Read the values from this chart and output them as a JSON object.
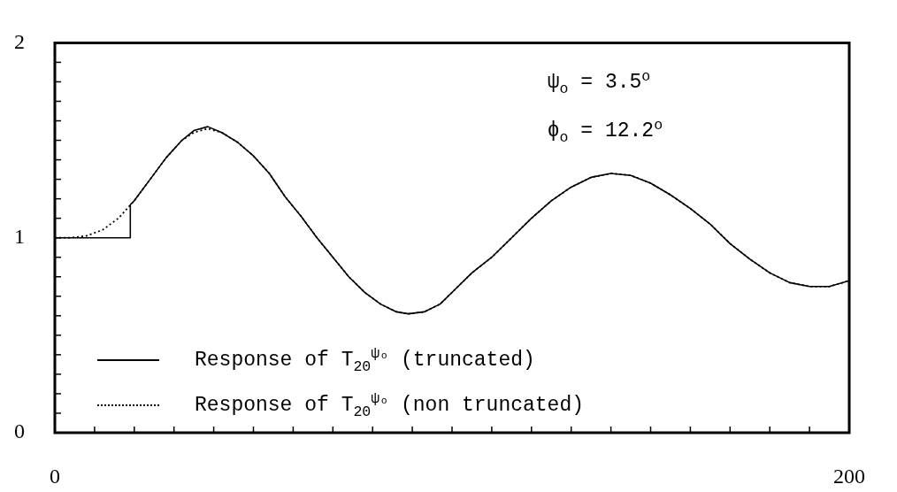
{
  "chart_data": {
    "type": "line",
    "series": [
      {
        "name": "Response of T$_{20}$$^{ψₒ}$ (truncated)",
        "color": "#000000",
        "line_style": "solid",
        "x": [
          0,
          19,
          19,
          20,
          24,
          28,
          32,
          35,
          38.5,
          42,
          46,
          50,
          54,
          58,
          62,
          66,
          70,
          74,
          78,
          82,
          86,
          89,
          93,
          97,
          101,
          105,
          110,
          115,
          120,
          125,
          130,
          135,
          140,
          145,
          150,
          155,
          160,
          165,
          170,
          175,
          180,
          185,
          190,
          195,
          200
        ],
        "values": [
          1.0,
          1.0,
          1.17,
          1.19,
          1.3,
          1.41,
          1.5,
          1.55,
          1.57,
          1.54,
          1.49,
          1.42,
          1.33,
          1.21,
          1.11,
          1.0,
          0.9,
          0.8,
          0.72,
          0.66,
          0.62,
          0.61,
          0.62,
          0.66,
          0.74,
          0.82,
          0.9,
          1.0,
          1.1,
          1.19,
          1.26,
          1.31,
          1.33,
          1.32,
          1.28,
          1.22,
          1.15,
          1.07,
          0.97,
          0.89,
          0.82,
          0.77,
          0.75,
          0.75,
          0.78
        ]
      },
      {
        "name": "Response of T$_{20}$$^{ψₒ}$ (non truncated)",
        "color": "#000000",
        "line_style": "dotted",
        "x": [
          0,
          4,
          8,
          12,
          16,
          20,
          24,
          28,
          32,
          35,
          38.5,
          42,
          46,
          50,
          54,
          58,
          62,
          66,
          70,
          74,
          78,
          82,
          86,
          89,
          93,
          97,
          101,
          105,
          110,
          115,
          120,
          125,
          130,
          135,
          140,
          145,
          150,
          155,
          160,
          165,
          170,
          175,
          180,
          185,
          190,
          195,
          200
        ],
        "values": [
          1.0,
          1.0,
          1.01,
          1.04,
          1.1,
          1.19,
          1.3,
          1.41,
          1.5,
          1.54,
          1.56,
          1.54,
          1.49,
          1.42,
          1.33,
          1.21,
          1.11,
          1.0,
          0.9,
          0.8,
          0.72,
          0.66,
          0.62,
          0.61,
          0.62,
          0.66,
          0.74,
          0.82,
          0.9,
          1.0,
          1.1,
          1.19,
          1.26,
          1.31,
          1.33,
          1.32,
          1.28,
          1.22,
          1.15,
          1.07,
          0.97,
          0.89,
          0.82,
          0.77,
          0.75,
          0.75,
          0.78
        ]
      }
    ],
    "xlim": [
      0,
      200
    ],
    "xticks": [
      0,
      {
        "value": 10,
        "label": null
      },
      {
        "value": 20,
        "label": null
      },
      {
        "value": 30,
        "label": null
      },
      {
        "value": 40,
        "label": null
      },
      {
        "value": 50,
        "label": null
      },
      {
        "value": 60,
        "label": null
      },
      {
        "value": 70,
        "label": null
      },
      {
        "value": 80,
        "label": null
      },
      {
        "value": 90,
        "label": null
      },
      {
        "value": 100,
        "label": null
      },
      {
        "value": 110,
        "label": null
      },
      {
        "value": 120,
        "label": null
      },
      {
        "value": 130,
        "label": null
      },
      {
        "value": 140,
        "label": null
      },
      {
        "value": 150,
        "label": null
      },
      {
        "value": 160,
        "label": null
      },
      {
        "value": 170,
        "label": null
      },
      {
        "value": 180,
        "label": null
      },
      {
        "value": 190,
        "label": null
      },
      200
    ],
    "ylim": [
      0,
      2
    ],
    "yticks": [
      0,
      {
        "value": 0.1,
        "label": null
      },
      {
        "value": 0.2,
        "label": null
      },
      {
        "value": 0.3,
        "label": null
      },
      {
        "value": 0.4,
        "label": null
      },
      {
        "value": 0.5,
        "label": null
      },
      {
        "value": 0.6,
        "label": null
      },
      {
        "value": 0.7,
        "label": null
      },
      {
        "value": 0.8,
        "label": null
      },
      {
        "value": 0.9,
        "label": null
      },
      1,
      {
        "value": 1.1,
        "label": null
      },
      {
        "value": 1.2,
        "label": null
      },
      {
        "value": 1.3,
        "label": null
      },
      {
        "value": 1.4,
        "label": null
      },
      {
        "value": 1.5,
        "label": null
      },
      {
        "value": 1.6,
        "label": null
      },
      {
        "value": 1.7,
        "label": null
      },
      {
        "value": 1.8,
        "label": null
      },
      {
        "value": 1.9,
        "label": null
      },
      2
    ],
    "grid": false,
    "legend": "bottom left",
    "marker": "none",
    "annotations": [
      "ψ$_{o}$ = 3.5$^{o}$",
      "ϕ$_{o}$ = 12.2$^{o}$"
    ]
  }
}
